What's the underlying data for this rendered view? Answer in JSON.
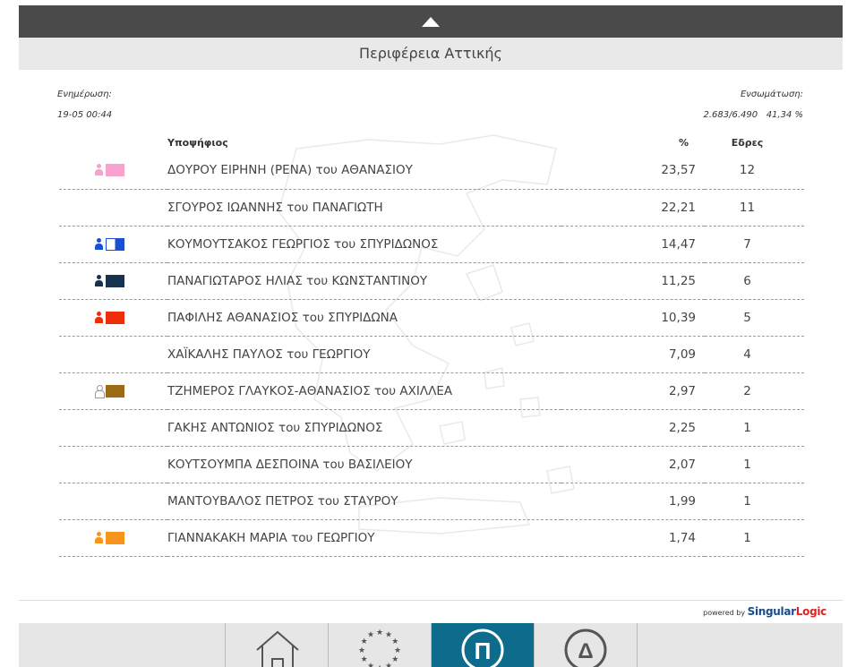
{
  "header": {
    "region_title": "Περιφέρεια Αττικής"
  },
  "meta": {
    "update_label": "Ενημέρωση:",
    "update_time": "19-05 00:44",
    "integration_label": "Ενσωμάτωση:",
    "integration_count": "2.683/6.490",
    "integration_pct": "41,34 %"
  },
  "table": {
    "headers": {
      "candidate": "Υποψήφιος",
      "percent": "%",
      "seats": "Εδρες"
    },
    "rows": [
      {
        "name": "ΔΟΥΡΟΥ ΕΙΡΗΝΗ (ΡΕΝΑ) του ΑΘΑΝΑΣΙΟΥ",
        "percent": "23,57",
        "seats": "12"
      },
      {
        "name": "ΣΓΟΥΡΟΣ ΙΩΑΝΝΗΣ του ΠΑΝΑΓΙΩΤΗ",
        "percent": "22,21",
        "seats": "11"
      },
      {
        "name": "ΚΟΥΜΟΥΤΣΑΚΟΣ ΓΕΩΡΓΙΟΣ του ΣΠΥΡΙΔΩΝΟΣ",
        "percent": "14,47",
        "seats": "7"
      },
      {
        "name": "ΠΑΝΑΓΙΩΤΑΡΟΣ ΗΛΙΑΣ του ΚΩΝΣΤΑΝΤΙΝΟΥ",
        "percent": "11,25",
        "seats": "6"
      },
      {
        "name": "ΠΑΦΙΛΗΣ ΑΘΑΝΑΣΙΟΣ του ΣΠΥΡΙΔΩΝΑ",
        "percent": "10,39",
        "seats": "5"
      },
      {
        "name": "ΧΑΪΚΑΛΗΣ ΠΑΥΛΟΣ του ΓΕΩΡΓΙΟΥ",
        "percent": "7,09",
        "seats": "4"
      },
      {
        "name": "ΤΖΗΜΕΡΟΣ ΓΛΑΥΚΟΣ-ΑΘΑΝΑΣΙΟΣ του ΑΧΙΛΛΕΑ",
        "percent": "2,97",
        "seats": "2"
      },
      {
        "name": "ΓΑΚΗΣ ΑΝΤΩΝΙΟΣ του ΣΠΥΡΙΔΩΝΟΣ",
        "percent": "2,25",
        "seats": "1"
      },
      {
        "name": "ΚΟΥΤΣΟΥΜΠΑ ΔΕΣΠΟΙΝΑ του ΒΑΣΙΛΕΙΟΥ",
        "percent": "2,07",
        "seats": "1"
      },
      {
        "name": "ΜΑΝΤΟΥΒΑΛΟΣ ΠΕΤΡΟΣ του ΣΤΑΥΡΟΥ",
        "percent": "1,99",
        "seats": "1"
      },
      {
        "name": "ΓΙΑΝΝΑΚΑΚΗ ΜΑΡΙΑ του ΓΕΩΡΓΙΟΥ",
        "percent": "1,74",
        "seats": "1"
      }
    ],
    "flag_colors": [
      "#f7a1cc",
      null,
      "#1a4fcf",
      "#17324f",
      "#ee2d0b",
      null,
      "#9a6a14",
      null,
      null,
      null,
      "#f7941d"
    ]
  },
  "footer": {
    "powered_prefix": "powered by",
    "brand": "Singular",
    "brand_suffix": "Logic"
  },
  "nav": {
    "items": [
      {
        "icon": "home-icon"
      },
      {
        "icon": "eu-stars-icon"
      },
      {
        "icon": "pi-icon",
        "glyph": "Π",
        "active": true
      },
      {
        "icon": "delta-icon",
        "glyph": "Δ"
      }
    ]
  }
}
